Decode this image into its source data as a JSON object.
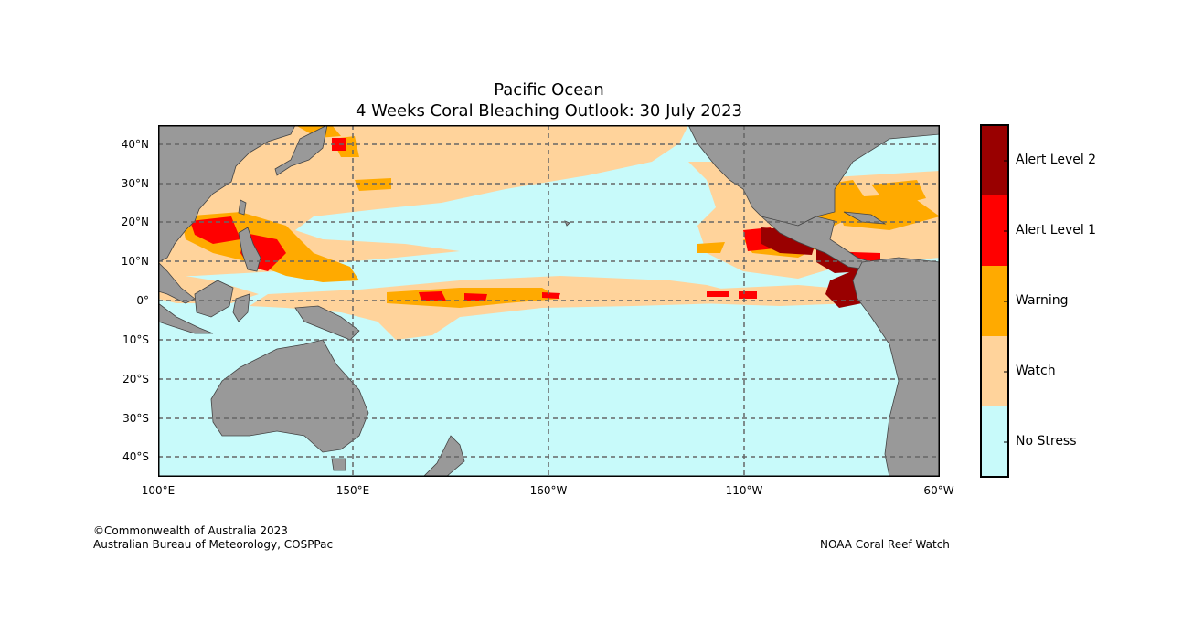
{
  "title": {
    "line1": "Pacific Ocean",
    "line2": "4 Weeks Coral Bleaching Outlook: 30 July 2023"
  },
  "axes": {
    "lat_labels": [
      "40°N",
      "30°N",
      "20°N",
      "10°N",
      "0°",
      "10°S",
      "20°S",
      "30°S",
      "40°S"
    ],
    "lon_labels": [
      "100°E",
      "150°E",
      "160°W",
      "110°W",
      "60°W"
    ],
    "lat_range": [
      -45,
      45
    ],
    "lon_range_east_degrees": [
      100,
      300
    ],
    "grid": "dashed"
  },
  "legend": {
    "placement": "right",
    "entries": [
      {
        "label": "Alert Level 2",
        "color": "#990000"
      },
      {
        "label": "Alert Level 1",
        "color": "#ff0000"
      },
      {
        "label": "Warning",
        "color": "#ffaa00"
      },
      {
        "label": "Watch",
        "color": "#ffd39b"
      },
      {
        "label": "No Stress",
        "color": "#c8fafa"
      }
    ]
  },
  "colors": {
    "land": "#999999",
    "coast": "#444444",
    "grid": "#666666"
  },
  "credits": {
    "left_line1": "©Commonwealth of Australia 2023",
    "left_line2": "Australian Bureau of Meteorology, COSPPac",
    "right": "NOAA Coral Reef Watch"
  }
}
